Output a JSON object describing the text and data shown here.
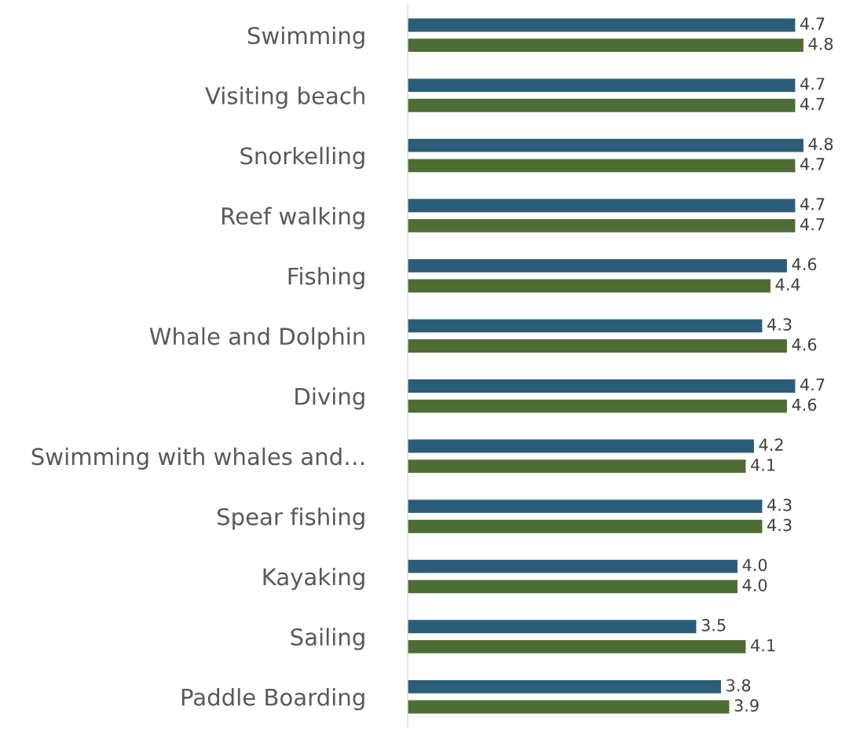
{
  "chart_data": {
    "type": "bar",
    "orientation": "horizontal",
    "categories": [
      "Swimming",
      "Visiting beach",
      "Snorkelling",
      "Reef walking",
      "Fishing",
      "Whale and Dolphin",
      "Diving",
      "Swimming with whales and…",
      "Spear fishing",
      "Kayaking",
      "Sailing",
      "Paddle Boarding"
    ],
    "series": [
      {
        "color": "#2c5d78",
        "values": [
          4.7,
          4.7,
          4.8,
          4.7,
          4.6,
          4.3,
          4.7,
          4.2,
          4.3,
          4.0,
          3.5,
          3.8
        ],
        "value_labels": [
          "4.7",
          "4.7",
          "4.8",
          "4.7",
          "4.6",
          "4.3",
          "4.7",
          "4.2",
          "4.3",
          "4.0",
          "3.5",
          "3.8"
        ]
      },
      {
        "color": "#4e6d35",
        "values": [
          4.8,
          4.7,
          4.7,
          4.7,
          4.4,
          4.6,
          4.6,
          4.1,
          4.3,
          4.0,
          4.1,
          3.9
        ],
        "value_labels": [
          "4.8",
          "4.7",
          "4.7",
          "4.7",
          "4.4",
          "4.6",
          "4.6",
          "4.1",
          "4.3",
          "4.0",
          "4.1",
          "3.9"
        ]
      }
    ],
    "tick_labels": "y",
    "grid": false,
    "legend": false
  }
}
